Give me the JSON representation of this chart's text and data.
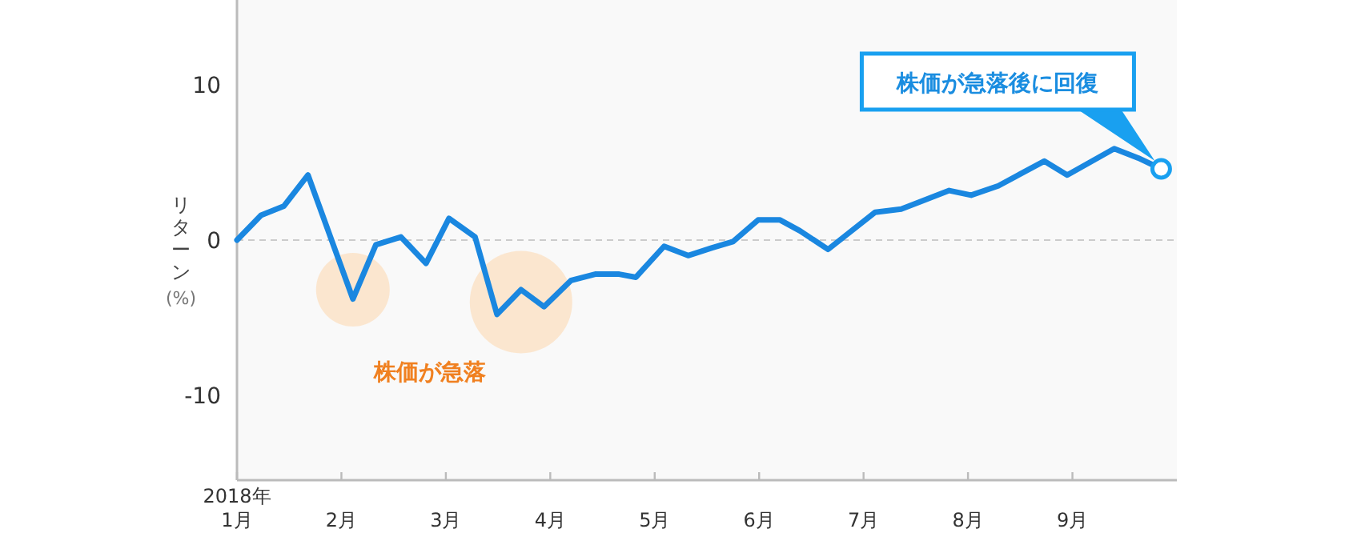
{
  "chart_data": {
    "type": "line",
    "ylabel": "リターン (%)",
    "x": [
      1.0,
      1.23,
      1.45,
      1.68,
      2.11,
      2.33,
      2.57,
      2.81,
      3.03,
      3.28,
      3.49,
      3.72,
      3.94,
      4.2,
      4.43,
      4.66,
      4.82,
      5.09,
      5.32,
      5.55,
      5.75,
      5.99,
      6.2,
      6.39,
      6.66,
      7.11,
      7.36,
      7.82,
      8.03,
      8.29,
      8.73,
      8.95,
      9.4,
      9.63,
      9.85
    ],
    "series": [
      {
        "color": "#1a87e0",
        "values": [
          0.0,
          1.6,
          2.2,
          4.2,
          -3.8,
          -0.3,
          0.2,
          -1.5,
          1.4,
          0.2,
          -4.8,
          -3.2,
          -4.3,
          -2.6,
          -2.2,
          -2.2,
          -2.4,
          -0.4,
          -1.0,
          -0.5,
          -0.1,
          1.3,
          1.3,
          0.6,
          -0.6,
          1.8,
          2.0,
          3.2,
          2.9,
          3.5,
          5.1,
          4.2,
          5.9,
          5.3,
          4.6
        ]
      }
    ],
    "xlim": [
      1,
      10
    ],
    "xticks": [
      {
        "value": 1,
        "label": "2018年\n1月"
      },
      {
        "value": 2,
        "label": "2月"
      },
      {
        "value": 3,
        "label": "3月"
      },
      {
        "value": 4,
        "label": "4月"
      },
      {
        "value": 5,
        "label": "5月"
      },
      {
        "value": 6,
        "label": "6月"
      },
      {
        "value": 7,
        "label": "7月"
      },
      {
        "value": 8,
        "label": "8月"
      },
      {
        "value": 9,
        "label": "9月"
      }
    ],
    "ylim": [
      -15.5,
      15.5
    ],
    "yticks": [
      10,
      0,
      -10
    ],
    "ref_lines": [
      {
        "axis": "y",
        "value": 0,
        "color": "#cccccc",
        "line_style": "dashed"
      }
    ],
    "annotations": [
      "株価が急落後に回復",
      "株価が急落"
    ],
    "grid": false,
    "marker": "none",
    "line_style": "solid"
  }
}
